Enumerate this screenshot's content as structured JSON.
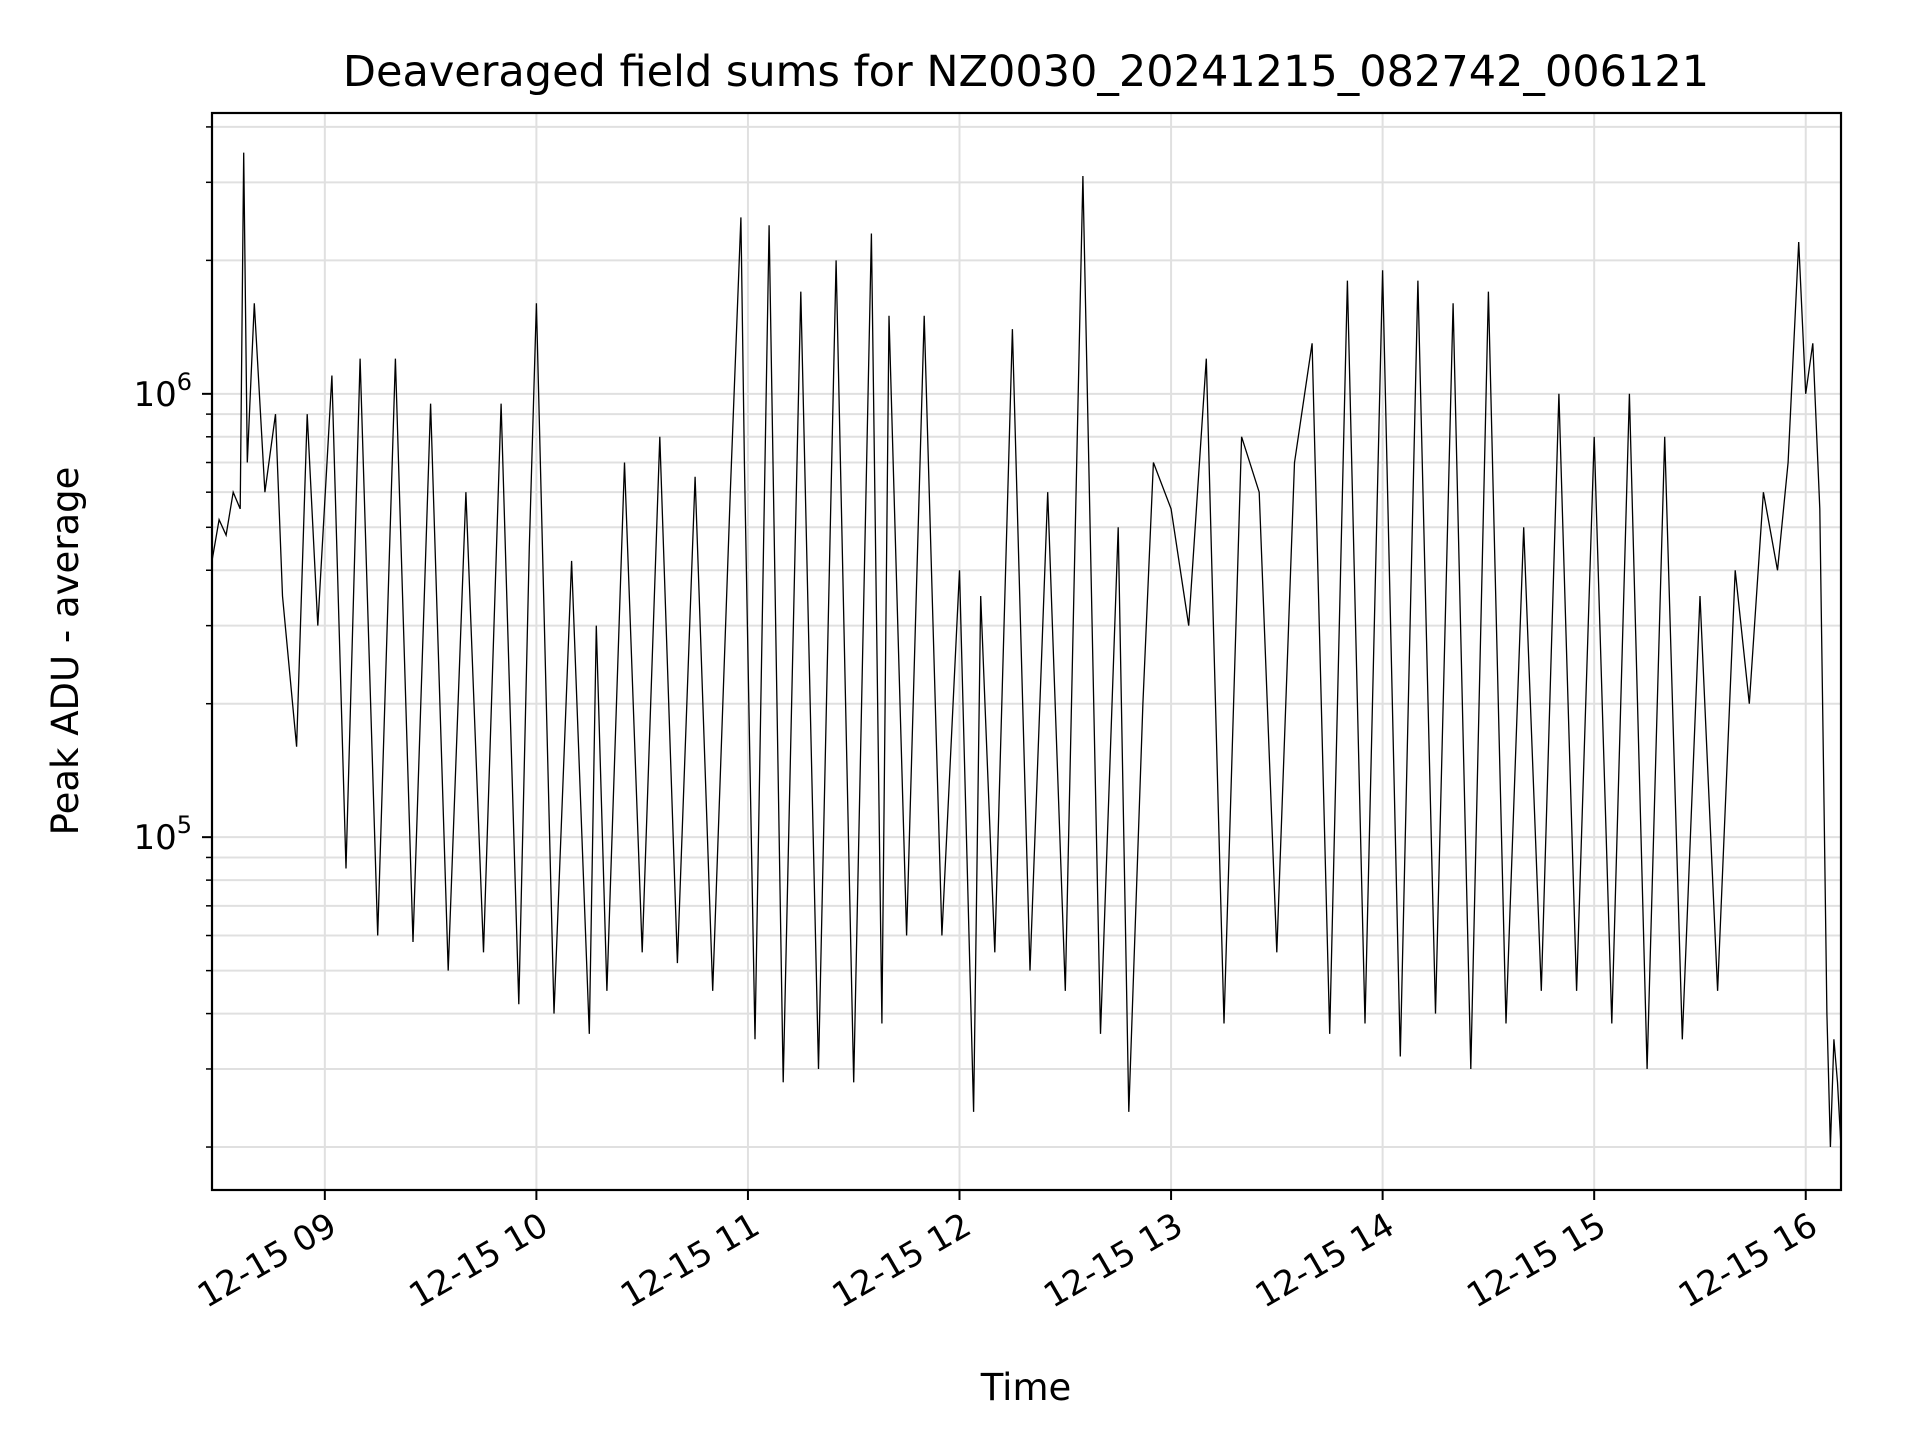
{
  "chart_data": {
    "type": "line",
    "title": "Deaveraged field sums for NZ0030_20241215_082742_006121",
    "xlabel": "Time",
    "ylabel": "Peak ADU - average",
    "yscale": "log",
    "xlim": [
      "2024-12-15 08:28",
      "2024-12-15 16:10"
    ],
    "ylim": [
      16000,
      4300000
    ],
    "grid": true,
    "line_color": "#000000",
    "x_ticks": [
      {
        "t": "2024-12-15 09:00",
        "label": "12-15 09"
      },
      {
        "t": "2024-12-15 10:00",
        "label": "12-15 10"
      },
      {
        "t": "2024-12-15 11:00",
        "label": "12-15 11"
      },
      {
        "t": "2024-12-15 12:00",
        "label": "12-15 12"
      },
      {
        "t": "2024-12-15 13:00",
        "label": "12-15 13"
      },
      {
        "t": "2024-12-15 14:00",
        "label": "12-15 14"
      },
      {
        "t": "2024-12-15 15:00",
        "label": "12-15 15"
      },
      {
        "t": "2024-12-15 16:00",
        "label": "12-15 16"
      }
    ],
    "y_ticks": [
      {
        "value": 100000,
        "base": "10",
        "exp": "5"
      },
      {
        "value": 1000000,
        "base": "10",
        "exp": "6"
      }
    ],
    "series": [
      {
        "x": [
          "2024-12-15 08:28",
          "2024-12-15 08:30",
          "2024-12-15 08:32",
          "2024-12-15 08:34",
          "2024-12-15 08:36",
          "2024-12-15 08:37",
          "2024-12-15 08:38",
          "2024-12-15 08:40",
          "2024-12-15 08:43",
          "2024-12-15 08:46",
          "2024-12-15 08:48",
          "2024-12-15 08:52",
          "2024-12-15 08:55",
          "2024-12-15 08:58",
          "2024-12-15 09:02",
          "2024-12-15 09:06",
          "2024-12-15 09:10",
          "2024-12-15 09:15",
          "2024-12-15 09:20",
          "2024-12-15 09:25",
          "2024-12-15 09:30",
          "2024-12-15 09:35",
          "2024-12-15 09:40",
          "2024-12-15 09:45",
          "2024-12-15 09:50",
          "2024-12-15 09:55",
          "2024-12-15 09:58",
          "2024-12-15 10:00",
          "2024-12-15 10:05",
          "2024-12-15 10:10",
          "2024-12-15 10:15",
          "2024-12-15 10:17",
          "2024-12-15 10:20",
          "2024-12-15 10:25",
          "2024-12-15 10:30",
          "2024-12-15 10:35",
          "2024-12-15 10:40",
          "2024-12-15 10:45",
          "2024-12-15 10:50",
          "2024-12-15 10:55",
          "2024-12-15 10:58",
          "2024-12-15 10:59",
          "2024-12-15 11:02",
          "2024-12-15 11:06",
          "2024-12-15 11:10",
          "2024-12-15 11:15",
          "2024-12-15 11:20",
          "2024-12-15 11:25",
          "2024-12-15 11:30",
          "2024-12-15 11:35",
          "2024-12-15 11:38",
          "2024-12-15 11:40",
          "2024-12-15 11:45",
          "2024-12-15 11:50",
          "2024-12-15 11:55",
          "2024-12-15 12:00",
          "2024-12-15 12:04",
          "2024-12-15 12:06",
          "2024-12-15 12:10",
          "2024-12-15 12:15",
          "2024-12-15 12:20",
          "2024-12-15 12:25",
          "2024-12-15 12:30",
          "2024-12-15 12:35",
          "2024-12-15 12:40",
          "2024-12-15 12:45",
          "2024-12-15 12:48",
          "2024-12-15 12:52",
          "2024-12-15 12:55",
          "2024-12-15 13:00",
          "2024-12-15 13:05",
          "2024-12-15 13:10",
          "2024-12-15 13:15",
          "2024-12-15 13:20",
          "2024-12-15 13:25",
          "2024-12-15 13:30",
          "2024-12-15 13:35",
          "2024-12-15 13:40",
          "2024-12-15 13:45",
          "2024-12-15 13:50",
          "2024-12-15 13:55",
          "2024-12-15 14:00",
          "2024-12-15 14:05",
          "2024-12-15 14:10",
          "2024-12-15 14:15",
          "2024-12-15 14:20",
          "2024-12-15 14:25",
          "2024-12-15 14:30",
          "2024-12-15 14:35",
          "2024-12-15 14:40",
          "2024-12-15 14:45",
          "2024-12-15 14:50",
          "2024-12-15 14:55",
          "2024-12-15 15:00",
          "2024-12-15 15:05",
          "2024-12-15 15:10",
          "2024-12-15 15:15",
          "2024-12-15 15:20",
          "2024-12-15 15:25",
          "2024-12-15 15:30",
          "2024-12-15 15:35",
          "2024-12-15 15:40",
          "2024-12-15 15:44",
          "2024-12-15 15:48",
          "2024-12-15 15:52",
          "2024-12-15 15:55",
          "2024-12-15 15:58",
          "2024-12-15 16:00",
          "2024-12-15 16:02",
          "2024-12-15 16:04",
          "2024-12-15 16:05",
          "2024-12-15 16:06",
          "2024-12-15 16:07",
          "2024-12-15 16:08",
          "2024-12-15 16:09",
          "2024-12-15 16:10"
        ],
        "values": [
          420000,
          520000,
          480000,
          600000,
          550000,
          3500000,
          700000,
          1600000,
          600000,
          900000,
          350000,
          160000,
          900000,
          300000,
          1100000,
          85000,
          1200000,
          60000,
          1200000,
          58000,
          950000,
          50000,
          600000,
          55000,
          950000,
          42000,
          450000,
          1600000,
          40000,
          420000,
          36000,
          300000,
          45000,
          700000,
          55000,
          800000,
          52000,
          650000,
          45000,
          600000,
          2500000,
          700000,
          35000,
          2400000,
          28000,
          1700000,
          30000,
          2000000,
          28000,
          2300000,
          38000,
          1500000,
          60000,
          1500000,
          60000,
          400000,
          24000,
          350000,
          55000,
          1400000,
          50000,
          600000,
          45000,
          3100000,
          36000,
          500000,
          24000,
          200000,
          700000,
          550000,
          300000,
          1200000,
          38000,
          800000,
          600000,
          55000,
          700000,
          1300000,
          36000,
          1800000,
          38000,
          1900000,
          32000,
          1800000,
          40000,
          1600000,
          30000,
          1700000,
          38000,
          500000,
          45000,
          1000000,
          45000,
          800000,
          38000,
          1000000,
          30000,
          800000,
          35000,
          350000,
          45000,
          400000,
          200000,
          600000,
          400000,
          700000,
          2200000,
          1000000,
          1300000,
          550000,
          150000,
          40000,
          20000,
          35000,
          28000,
          20000
        ]
      }
    ]
  }
}
